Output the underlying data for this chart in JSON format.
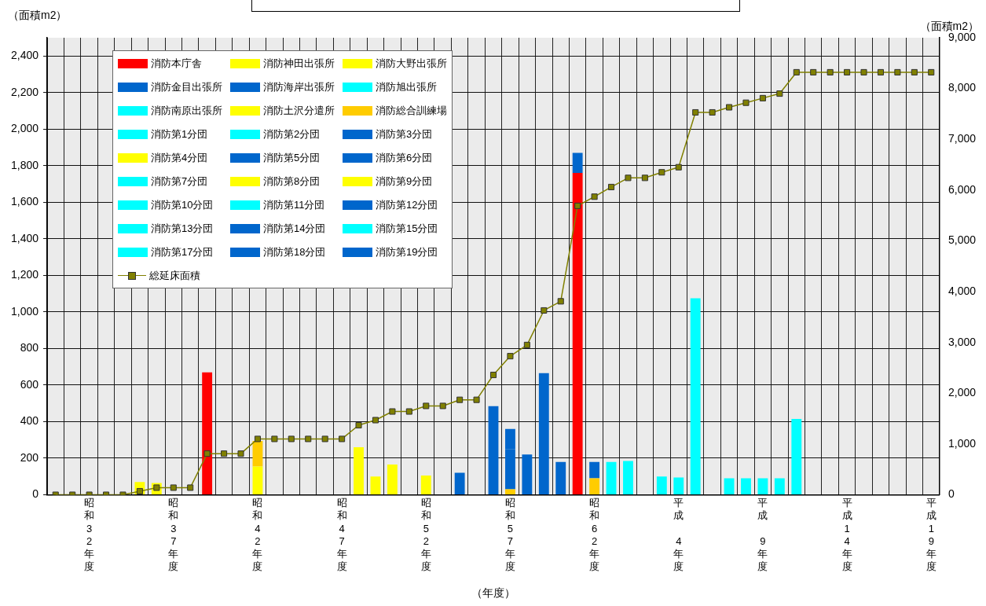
{
  "chart_data": {
    "type": "bar",
    "stacked": true,
    "ylabel": "（面積m2）",
    "y2label": "（面積m2）",
    "xlabel": "（年度）",
    "categories": [
      null,
      null,
      "昭和32年度",
      null,
      null,
      null,
      null,
      "昭和37年度",
      null,
      null,
      null,
      null,
      "昭和42年度",
      null,
      null,
      null,
      null,
      "昭和47年度",
      null,
      null,
      null,
      null,
      "昭和52年度",
      null,
      null,
      null,
      null,
      "昭和57年度",
      null,
      null,
      null,
      null,
      "昭和62年度",
      null,
      null,
      null,
      null,
      "平成4年度",
      null,
      null,
      null,
      null,
      "平成9年度",
      null,
      null,
      null,
      null,
      "平成14年度",
      null,
      null,
      null,
      null,
      "平成19年度"
    ],
    "ylim": [
      0,
      2500
    ],
    "yticks": [
      0,
      200,
      400,
      600,
      800,
      {
        "value": 1000,
        "label": "1,000"
      },
      {
        "value": 1200,
        "label": "1,200"
      },
      {
        "value": 1400,
        "label": "1,400"
      },
      {
        "value": 1600,
        "label": "1,600"
      },
      {
        "value": 1800,
        "label": "1,800"
      },
      {
        "value": 2000,
        "label": "2,000"
      },
      {
        "value": 2200,
        "label": "2,200"
      },
      {
        "value": 2400,
        "label": "2,400"
      }
    ],
    "y2lim": [
      0,
      9000
    ],
    "y2ticks": [
      0,
      {
        "value": 1000,
        "label": "1,000"
      },
      {
        "value": 2000,
        "label": "2,000"
      },
      {
        "value": 3000,
        "label": "3,000"
      },
      {
        "value": 4000,
        "label": "4,000"
      },
      {
        "value": 5000,
        "label": "5,000"
      },
      {
        "value": 6000,
        "label": "6,000"
      },
      {
        "value": 7000,
        "label": "7,000"
      },
      {
        "value": 8000,
        "label": "8,000"
      },
      {
        "value": 9000,
        "label": "9,000"
      }
    ],
    "grid": true,
    "legend": "top left",
    "series": [
      {
        "name": "消防本庁舎",
        "color": "#ff0000",
        "values": [
          null,
          null,
          null,
          null,
          null,
          null,
          null,
          null,
          null,
          670,
          null,
          null,
          null,
          null,
          null,
          null,
          null,
          null,
          null,
          null,
          null,
          null,
          null,
          null,
          null,
          null,
          null,
          null,
          null,
          null,
          null,
          1760,
          null,
          null,
          null,
          null,
          null,
          null,
          null,
          null,
          null,
          null,
          null,
          null,
          null,
          null,
          null,
          null,
          null,
          null,
          null,
          null,
          null
        ]
      },
      {
        "name": "消防神田出張所",
        "color": "#ffff00",
        "values": [
          null,
          null,
          null,
          null,
          null,
          null,
          null,
          null,
          null,
          null,
          null,
          null,
          155,
          null,
          null,
          null,
          null,
          null,
          null,
          null,
          null,
          null,
          105,
          null,
          null,
          null,
          null,
          null,
          null,
          null,
          null,
          null,
          null,
          null,
          null,
          null,
          null,
          null,
          null,
          null,
          null,
          null,
          null,
          null,
          null,
          null,
          null,
          null,
          null,
          null,
          null,
          null,
          null
        ]
      },
      {
        "name": "消防大野出張所",
        "color": "#ffff00",
        "values": [
          null,
          null,
          null,
          null,
          null,
          null,
          null,
          null,
          null,
          null,
          null,
          null,
          null,
          null,
          null,
          null,
          null,
          null,
          260,
          null,
          null,
          null,
          null,
          null,
          null,
          null,
          null,
          null,
          null,
          null,
          null,
          null,
          null,
          null,
          null,
          null,
          null,
          null,
          null,
          null,
          null,
          null,
          null,
          null,
          null,
          null,
          null,
          null,
          null,
          null,
          null,
          null,
          null
        ]
      },
      {
        "name": "消防金目出張所",
        "color": "#0066cc",
        "values": [
          null,
          null,
          null,
          null,
          null,
          null,
          null,
          null,
          null,
          null,
          null,
          null,
          null,
          null,
          null,
          null,
          null,
          null,
          null,
          null,
          null,
          null,
          null,
          null,
          null,
          null,
          485,
          null,
          null,
          null,
          null,
          null,
          null,
          null,
          null,
          null,
          null,
          null,
          null,
          null,
          null,
          null,
          null,
          null,
          null,
          null,
          null,
          null,
          null,
          null,
          null,
          null,
          null
        ]
      },
      {
        "name": "消防海岸出張所",
        "color": "#0066cc",
        "values": [
          null,
          null,
          null,
          null,
          null,
          null,
          null,
          null,
          null,
          null,
          null,
          null,
          null,
          null,
          null,
          null,
          null,
          null,
          null,
          null,
          null,
          null,
          null,
          null,
          null,
          null,
          null,
          null,
          null,
          665,
          null,
          null,
          null,
          null,
          null,
          null,
          null,
          null,
          null,
          null,
          null,
          null,
          null,
          null,
          null,
          null,
          null,
          null,
          null,
          null,
          null,
          null,
          null
        ]
      },
      {
        "name": "消防旭出張所",
        "color": "#00ffff",
        "values": [
          null,
          null,
          null,
          null,
          null,
          null,
          null,
          null,
          null,
          null,
          null,
          null,
          null,
          null,
          null,
          null,
          null,
          null,
          null,
          null,
          null,
          null,
          null,
          null,
          null,
          null,
          null,
          null,
          null,
          null,
          null,
          null,
          null,
          null,
          null,
          null,
          null,
          null,
          1075,
          null,
          null,
          null,
          null,
          null,
          null,
          null,
          null,
          null,
          null,
          null,
          null,
          null,
          null
        ]
      },
      {
        "name": "消防南原出張所",
        "color": "#00ffff",
        "values": [
          null,
          null,
          null,
          null,
          null,
          null,
          null,
          null,
          null,
          null,
          null,
          null,
          null,
          null,
          null,
          null,
          null,
          null,
          null,
          null,
          null,
          null,
          null,
          null,
          null,
          null,
          null,
          null,
          null,
          null,
          null,
          null,
          null,
          null,
          null,
          null,
          null,
          null,
          null,
          null,
          null,
          null,
          null,
          null,
          415,
          null,
          null,
          null,
          null,
          null,
          null,
          null,
          null
        ]
      },
      {
        "name": "消防土沢分遣所",
        "color": "#ffff00",
        "values": [
          null,
          null,
          null,
          null,
          null,
          null,
          65,
          null,
          null,
          null,
          null,
          null,
          null,
          null,
          null,
          null,
          null,
          null,
          null,
          null,
          null,
          null,
          null,
          null,
          null,
          null,
          null,
          null,
          null,
          null,
          null,
          null,
          null,
          null,
          null,
          null,
          null,
          null,
          null,
          null,
          null,
          null,
          null,
          null,
          null,
          null,
          null,
          null,
          null,
          null,
          null,
          null,
          null
        ]
      },
      {
        "name": "消防総合訓練場",
        "color": "#ffcc00",
        "values": [
          null,
          null,
          null,
          null,
          null,
          null,
          null,
          null,
          null,
          null,
          null,
          null,
          140,
          null,
          null,
          null,
          null,
          null,
          null,
          null,
          null,
          null,
          null,
          null,
          null,
          null,
          null,
          30,
          null,
          null,
          null,
          null,
          90,
          null,
          null,
          null,
          null,
          null,
          null,
          null,
          null,
          null,
          null,
          null,
          null,
          null,
          null,
          null,
          null,
          null,
          null,
          null,
          null
        ]
      },
      {
        "name": "消防第1分団",
        "color": "#00ffff",
        "values": [
          null,
          null,
          null,
          null,
          null,
          null,
          null,
          null,
          null,
          null,
          null,
          null,
          null,
          null,
          null,
          null,
          null,
          null,
          null,
          null,
          null,
          null,
          null,
          null,
          null,
          null,
          null,
          null,
          null,
          null,
          null,
          null,
          null,
          null,
          185,
          null,
          null,
          null,
          null,
          null,
          null,
          null,
          null,
          null,
          null,
          null,
          null,
          null,
          null,
          null,
          null,
          null,
          null
        ]
      },
      {
        "name": "消防第2分団",
        "color": "#00ffff",
        "values": [
          null,
          null,
          null,
          null,
          null,
          null,
          null,
          null,
          null,
          null,
          null,
          null,
          null,
          null,
          null,
          null,
          null,
          null,
          null,
          null,
          null,
          null,
          null,
          null,
          null,
          null,
          null,
          null,
          null,
          null,
          null,
          null,
          null,
          180,
          null,
          null,
          null,
          null,
          null,
          null,
          null,
          null,
          null,
          null,
          null,
          null,
          null,
          null,
          null,
          null,
          null,
          null,
          null
        ]
      },
      {
        "name": "消防第3分団",
        "color": "#0066cc",
        "values": [
          null,
          null,
          null,
          null,
          null,
          null,
          null,
          null,
          null,
          null,
          null,
          null,
          null,
          null,
          null,
          null,
          null,
          null,
          null,
          null,
          null,
          null,
          null,
          null,
          null,
          null,
          null,
          220,
          null,
          null,
          null,
          null,
          null,
          null,
          null,
          null,
          null,
          null,
          null,
          null,
          null,
          null,
          null,
          null,
          null,
          null,
          null,
          null,
          null,
          null,
          null,
          null,
          null
        ]
      },
      {
        "name": "消防第4分団",
        "color": "#ffff00",
        "values": [
          null,
          null,
          null,
          null,
          null,
          null,
          null,
          null,
          null,
          null,
          null,
          null,
          null,
          null,
          null,
          null,
          null,
          null,
          null,
          null,
          165,
          null,
          null,
          null,
          null,
          null,
          null,
          null,
          null,
          null,
          null,
          null,
          null,
          null,
          null,
          null,
          null,
          null,
          null,
          null,
          null,
          null,
          null,
          null,
          null,
          null,
          null,
          null,
          null,
          null,
          null,
          null,
          null
        ]
      },
      {
        "name": "消防第5分団",
        "color": "#0066cc",
        "values": [
          null,
          null,
          null,
          null,
          null,
          null,
          null,
          null,
          null,
          null,
          null,
          null,
          null,
          null,
          null,
          null,
          null,
          null,
          null,
          null,
          null,
          null,
          null,
          null,
          null,
          null,
          null,
          null,
          null,
          null,
          180,
          null,
          null,
          null,
          null,
          null,
          null,
          null,
          null,
          null,
          null,
          null,
          null,
          null,
          null,
          null,
          null,
          null,
          null,
          null,
          null,
          null,
          null
        ]
      },
      {
        "name": "消防第6分団",
        "color": "#0066cc",
        "values": [
          null,
          null,
          null,
          null,
          null,
          null,
          null,
          null,
          null,
          null,
          null,
          null,
          null,
          null,
          null,
          null,
          null,
          null,
          null,
          null,
          null,
          null,
          null,
          null,
          null,
          null,
          null,
          null,
          220,
          null,
          null,
          null,
          null,
          null,
          null,
          null,
          null,
          null,
          null,
          null,
          null,
          null,
          null,
          null,
          null,
          null,
          null,
          null,
          null,
          null,
          null,
          null,
          null
        ]
      },
      {
        "name": "消防第7分団",
        "color": "#00ffff",
        "values": [
          null,
          null,
          null,
          null,
          null,
          null,
          null,
          null,
          null,
          null,
          null,
          null,
          null,
          null,
          null,
          null,
          null,
          null,
          null,
          null,
          null,
          null,
          null,
          null,
          null,
          null,
          null,
          null,
          null,
          null,
          null,
          null,
          null,
          null,
          null,
          null,
          100,
          null,
          null,
          null,
          null,
          null,
          null,
          null,
          null,
          null,
          null,
          null,
          null,
          null,
          null,
          null,
          null
        ]
      },
      {
        "name": "消防第8分団",
        "color": "#ffff00",
        "values": [
          null,
          null,
          null,
          null,
          null,
          null,
          null,
          null,
          null,
          null,
          null,
          null,
          null,
          null,
          null,
          null,
          null,
          null,
          null,
          100,
          null,
          null,
          null,
          null,
          null,
          null,
          null,
          null,
          null,
          null,
          null,
          null,
          null,
          null,
          null,
          null,
          null,
          null,
          null,
          null,
          null,
          null,
          null,
          null,
          null,
          null,
          null,
          null,
          null,
          null,
          null,
          null,
          null
        ]
      },
      {
        "name": "消防第9分団",
        "color": "#ffff00",
        "values": [
          null,
          null,
          null,
          null,
          null,
          70,
          null,
          null,
          null,
          null,
          null,
          null,
          null,
          null,
          null,
          null,
          null,
          null,
          null,
          null,
          null,
          null,
          null,
          null,
          null,
          null,
          null,
          null,
          null,
          null,
          null,
          null,
          null,
          null,
          null,
          null,
          null,
          null,
          null,
          null,
          null,
          null,
          null,
          null,
          null,
          null,
          null,
          null,
          null,
          null,
          null,
          null,
          null
        ]
      },
      {
        "name": "消防第10分団",
        "color": "#00ffff",
        "values": [
          null,
          null,
          null,
          null,
          null,
          null,
          null,
          null,
          null,
          null,
          null,
          null,
          null,
          null,
          null,
          null,
          null,
          null,
          null,
          null,
          null,
          null,
          null,
          null,
          null,
          null,
          null,
          null,
          null,
          null,
          null,
          null,
          null,
          null,
          null,
          null,
          null,
          null,
          null,
          null,
          90,
          null,
          null,
          null,
          null,
          null,
          null,
          null,
          null,
          null,
          null,
          null,
          null
        ]
      },
      {
        "name": "消防第11分団",
        "color": "#00ffff",
        "values": [
          null,
          null,
          null,
          null,
          null,
          null,
          null,
          null,
          null,
          null,
          null,
          null,
          null,
          null,
          null,
          null,
          null,
          null,
          null,
          null,
          null,
          null,
          null,
          null,
          null,
          null,
          null,
          null,
          null,
          null,
          null,
          null,
          null,
          null,
          null,
          null,
          null,
          95,
          null,
          null,
          null,
          null,
          null,
          null,
          null,
          null,
          null,
          null,
          null,
          null,
          null,
          null,
          null
        ]
      },
      {
        "name": "消防第12分団",
        "color": "#0066cc",
        "values": [
          null,
          null,
          null,
          null,
          null,
          null,
          null,
          null,
          null,
          null,
          null,
          null,
          null,
          null,
          null,
          null,
          null,
          null,
          null,
          null,
          null,
          null,
          null,
          null,
          120,
          null,
          null,
          null,
          null,
          null,
          null,
          null,
          null,
          null,
          null,
          null,
          null,
          null,
          null,
          null,
          null,
          null,
          null,
          null,
          null,
          null,
          null,
          null,
          null,
          null,
          null,
          null,
          null
        ]
      },
      {
        "name": "消防第13分団",
        "color": "#00ffff",
        "values": [
          null,
          null,
          null,
          null,
          null,
          null,
          null,
          null,
          null,
          null,
          null,
          null,
          null,
          null,
          null,
          null,
          null,
          null,
          null,
          null,
          null,
          null,
          null,
          null,
          null,
          null,
          null,
          null,
          null,
          null,
          null,
          null,
          null,
          null,
          null,
          null,
          null,
          null,
          null,
          null,
          null,
          null,
          90,
          null,
          null,
          null,
          null,
          null,
          null,
          null,
          null,
          null,
          null
        ]
      },
      {
        "name": "消防第14分団",
        "color": "#0066cc",
        "values": [
          null,
          null,
          null,
          null,
          null,
          null,
          null,
          null,
          null,
          null,
          null,
          null,
          null,
          null,
          null,
          null,
          null,
          null,
          null,
          null,
          null,
          null,
          null,
          null,
          null,
          null,
          null,
          null,
          null,
          null,
          null,
          110,
          null,
          null,
          null,
          null,
          null,
          null,
          null,
          null,
          null,
          null,
          null,
          null,
          null,
          null,
          null,
          null,
          null,
          null,
          null,
          null,
          null
        ]
      },
      {
        "name": "消防第15分団",
        "color": "#00ffff",
        "values": [
          null,
          null,
          null,
          null,
          null,
          null,
          null,
          null,
          null,
          null,
          null,
          null,
          null,
          null,
          null,
          null,
          null,
          null,
          null,
          null,
          null,
          null,
          null,
          null,
          null,
          null,
          null,
          null,
          null,
          null,
          null,
          null,
          null,
          null,
          null,
          null,
          null,
          null,
          null,
          null,
          null,
          null,
          null,
          90,
          null,
          null,
          null,
          null,
          null,
          null,
          null,
          null,
          null
        ]
      },
      {
        "name": "消防第17分団",
        "color": "#00ffff",
        "values": [
          null,
          null,
          null,
          null,
          null,
          null,
          null,
          null,
          null,
          null,
          null,
          null,
          null,
          null,
          null,
          null,
          null,
          null,
          null,
          null,
          null,
          null,
          null,
          null,
          null,
          null,
          null,
          null,
          null,
          null,
          null,
          null,
          null,
          null,
          null,
          null,
          null,
          null,
          null,
          null,
          null,
          90,
          null,
          null,
          null,
          null,
          null,
          null,
          null,
          null,
          null,
          null,
          null
        ]
      },
      {
        "name": "消防第18分団",
        "color": "#0066cc",
        "values": [
          null,
          null,
          null,
          null,
          null,
          null,
          null,
          null,
          null,
          null,
          null,
          null,
          null,
          null,
          null,
          null,
          null,
          null,
          null,
          null,
          null,
          null,
          null,
          null,
          null,
          null,
          null,
          null,
          null,
          null,
          null,
          null,
          90,
          null,
          null,
          null,
          null,
          null,
          null,
          null,
          null,
          null,
          null,
          null,
          null,
          null,
          null,
          null,
          null,
          null,
          null,
          null,
          null
        ]
      },
      {
        "name": "消防第19分団",
        "color": "#0066cc",
        "values": [
          null,
          null,
          null,
          null,
          null,
          null,
          null,
          null,
          null,
          null,
          null,
          null,
          null,
          null,
          null,
          null,
          null,
          null,
          null,
          null,
          null,
          null,
          null,
          null,
          null,
          null,
          null,
          110,
          null,
          null,
          null,
          null,
          null,
          null,
          null,
          null,
          null,
          null,
          null,
          null,
          null,
          null,
          null,
          null,
          null,
          null,
          null,
          null,
          null,
          null,
          null,
          null,
          null
        ]
      },
      {
        "name": "総延床面積",
        "type": "line",
        "axis": "y2",
        "marker": "square",
        "color": "#808000",
        "values": [
          0,
          0,
          0,
          0,
          0,
          70,
          140,
          140,
          140,
          810,
          810,
          810,
          1100,
          1100,
          1100,
          1100,
          1100,
          1100,
          1370,
          1470,
          1640,
          1640,
          1750,
          1750,
          1870,
          1870,
          2360,
          2730,
          2950,
          3630,
          3810,
          5690,
          5870,
          6060,
          6240,
          6240,
          6350,
          6450,
          7530,
          7530,
          7630,
          7720,
          7810,
          7900,
          8320,
          8320,
          8320,
          8320,
          8320,
          8320,
          8320,
          8320,
          8320
        ]
      }
    ]
  }
}
